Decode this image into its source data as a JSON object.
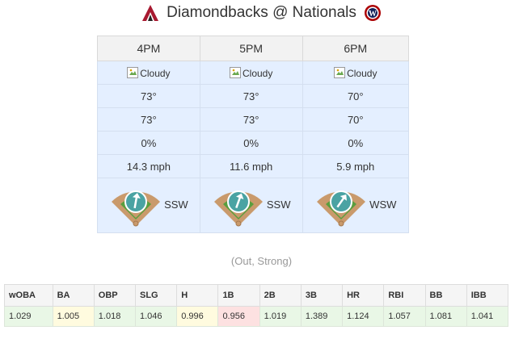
{
  "matchup": {
    "away_team": "Diamondbacks",
    "separator": "@",
    "home_team": "Nationals",
    "away_logo_icon": "diamondbacks-logo-icon",
    "home_logo_icon": "nationals-logo-icon"
  },
  "weather": {
    "hours": [
      {
        "time": "4PM",
        "condition": "Cloudy",
        "temp": "73°",
        "feels_like": "73°",
        "precip": "0%",
        "wind_speed": "14.3 mph",
        "wind_dir": "SSW",
        "wind_icon": "wind-arrow-icon"
      },
      {
        "time": "5PM",
        "condition": "Cloudy",
        "temp": "73°",
        "feels_like": "73°",
        "precip": "0%",
        "wind_speed": "11.6 mph",
        "wind_dir": "SSW",
        "wind_icon": "wind-arrow-icon"
      },
      {
        "time": "6PM",
        "condition": "Cloudy",
        "temp": "70°",
        "feels_like": "70°",
        "precip": "0%",
        "wind_speed": "5.9 mph",
        "wind_dir": "WSW",
        "wind_icon": "wind-arrow-icon"
      }
    ]
  },
  "wind_note": "(Out, Strong)",
  "park_factors": {
    "headers": [
      "wOBA",
      "BA",
      "OBP",
      "SLG",
      "H",
      "1B",
      "2B",
      "3B",
      "HR",
      "RBI",
      "BB",
      "IBB"
    ],
    "values": [
      "1.029",
      "1.005",
      "1.018",
      "1.046",
      "0.996",
      "0.956",
      "1.019",
      "1.389",
      "1.124",
      "1.057",
      "1.081",
      "1.041"
    ]
  },
  "colors": {
    "weather_cell": "#e4efff",
    "positive": "#e9f7e6",
    "neutral": "#fffbdf",
    "negative": "#fde1e1",
    "field_grass": "#5a9e3e",
    "field_dirt": "#c99a6c",
    "wind_circle": "#4aa3a3"
  }
}
